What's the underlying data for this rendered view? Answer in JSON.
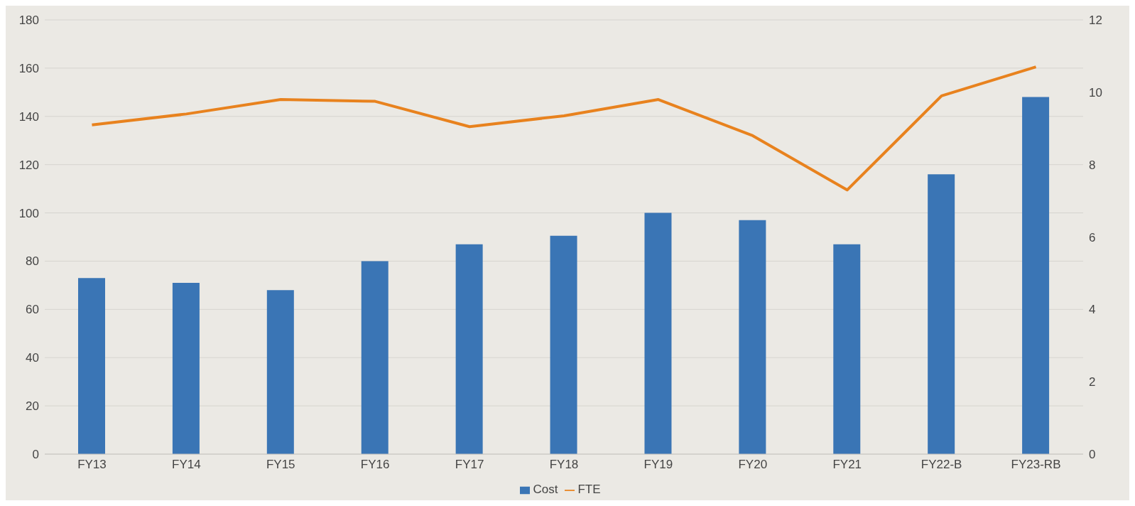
{
  "chart_data": {
    "type": "bar",
    "categories": [
      "FY13",
      "FY14",
      "FY15",
      "FY16",
      "FY17",
      "FY18",
      "FY19",
      "FY20",
      "FY21",
      "FY22-B",
      "FY23-RB"
    ],
    "series": [
      {
        "name": "Cost",
        "color": "#3a75b5",
        "values": [
          73,
          71,
          68,
          80,
          87,
          90.5,
          100,
          97,
          87,
          116,
          148
        ]
      },
      {
        "name": "FTE",
        "type": "line",
        "axis": "y2",
        "color": "#e8821e",
        "values": [
          9.1,
          9.4,
          9.8,
          9.75,
          9.05,
          9.35,
          9.8,
          8.8,
          7.3,
          9.9,
          10.7
        ]
      }
    ],
    "ylim": [
      0,
      180
    ],
    "yticks": [
      0,
      20,
      40,
      60,
      80,
      100,
      120,
      140,
      160,
      180
    ],
    "y2lim": [
      0,
      12
    ],
    "y2ticks": [
      0,
      2,
      4,
      6,
      8,
      10,
      12
    ],
    "grid": "y",
    "legend": "bottom",
    "marker": "none"
  }
}
